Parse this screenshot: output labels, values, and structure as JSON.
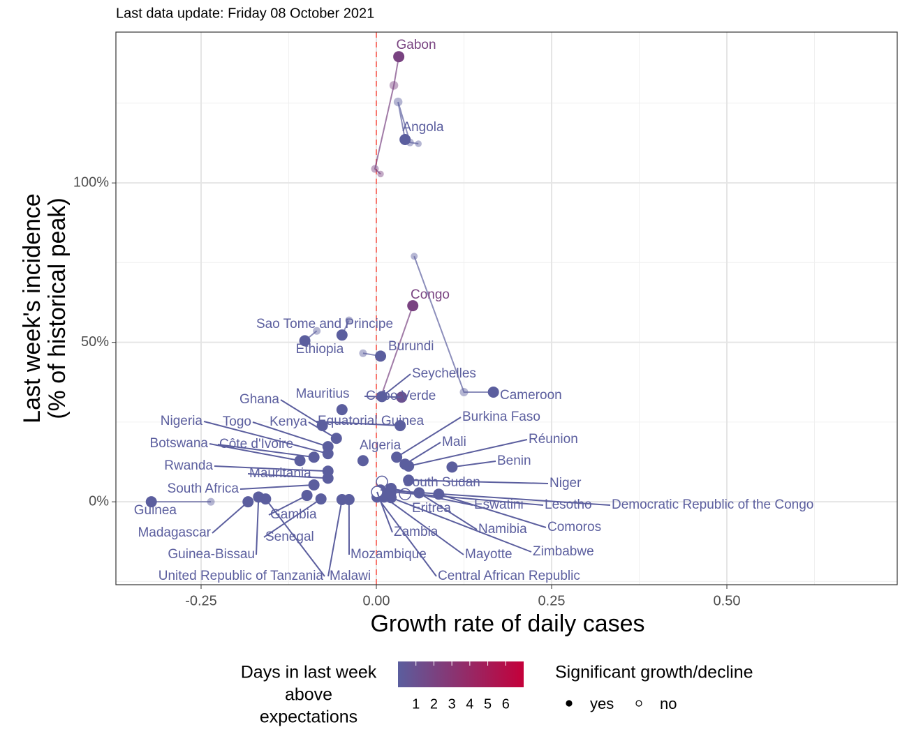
{
  "chart_data": {
    "type": "scatter",
    "subtitle": "Last data update: Friday 08 October 2021",
    "x_label": "Growth rate of daily cases",
    "y_label": [
      "Last week's incidence",
      "(% of historical peak)"
    ],
    "xlim": [
      -0.3715,
      0.743
    ],
    "ylim": [
      -26.0,
      147.3
    ],
    "xticks": [
      -0.25,
      {
        "value": 0,
        "label": "0.00"
      },
      0.25,
      {
        "value": 0.5,
        "label": "0.50"
      }
    ],
    "yticks": [
      {
        "value": 0,
        "label": "0%"
      },
      {
        "value": 50,
        "label": "50%"
      },
      {
        "value": 100,
        "label": "100%"
      }
    ],
    "grid": true,
    "vline": 0,
    "vline_color": "#f8766d",
    "color_low": "#5b5e9e",
    "color_high": "#c4003a",
    "color_limits": [
      0,
      7
    ],
    "color_ticks": [
      1,
      2,
      3,
      4,
      5,
      6
    ],
    "color_legend_title": [
      "Days in last week",
      "above",
      "expectations"
    ],
    "shape_legend": {
      "title": "Significant growth/decline",
      "labels": [
        "yes",
        "no"
      ]
    },
    "countries": [
      {
        "name": "Gabon",
        "x": [
          0.006,
          -0.002,
          0.025,
          0.032
        ],
        "y": [
          102.8,
          104.4,
          130.6,
          139.6
        ],
        "days": 2,
        "significant": true
      },
      {
        "name": "Angola",
        "x": [
          0.06,
          0.048,
          0.031,
          0.041
        ],
        "y": [
          112.3,
          112.7,
          125.4,
          113.6
        ],
        "days": 0,
        "significant": true
      },
      {
        "name": "Congo",
        "x": [
          0.006,
          0.052
        ],
        "y": [
          32.6,
          61.5
        ],
        "days": 2,
        "significant": true
      },
      {
        "name": "Cameroon",
        "x": [
          0.054,
          0.125,
          0.167
        ],
        "y": [
          77.0,
          34.4,
          34.4
        ],
        "days": 0,
        "significant": true
      },
      {
        "name": "Sao Tome and Principe",
        "x": [
          -0.039,
          -0.049
        ],
        "y": [
          56.9,
          52.3
        ],
        "days": 0,
        "significant": true
      },
      {
        "name": "Ethiopia",
        "x": [
          -0.085,
          -0.102
        ],
        "y": [
          53.6,
          50.5
        ],
        "days": 0,
        "significant": true
      },
      {
        "name": "Burundi",
        "x": [
          -0.019,
          0.006
        ],
        "y": [
          46.6,
          45.7
        ],
        "days": 0,
        "significant": true
      },
      {
        "name": "Seychelles",
        "x": [
          0.008
        ],
        "y": [
          33.0
        ],
        "days": 0,
        "significant": true
      },
      {
        "name": "Cabo Verde",
        "x": [
          0.036
        ],
        "y": [
          32.8
        ],
        "days": 1,
        "significant": true
      },
      {
        "name": "Ghana",
        "x": [
          -0.077
        ],
        "y": [
          23.9
        ],
        "days": 0,
        "significant": true
      },
      {
        "name": "Mauritius",
        "x": [
          -0.049
        ],
        "y": [
          28.9
        ],
        "days": 0,
        "significant": true
      },
      {
        "name": "Togo",
        "x": [
          -0.069
        ],
        "y": [
          17.3
        ],
        "days": 0,
        "significant": true
      },
      {
        "name": "Kenya",
        "x": [
          -0.057
        ],
        "y": [
          19.9
        ],
        "days": 0,
        "significant": true
      },
      {
        "name": "Nigeria",
        "x": [
          -0.069
        ],
        "y": [
          15.1
        ],
        "days": 0,
        "significant": true
      },
      {
        "name": "Equatorial Guinea",
        "x": [
          0.034
        ],
        "y": [
          23.9
        ],
        "days": 0,
        "significant": true
      },
      {
        "name": "Burkina Faso",
        "x": [
          0.029
        ],
        "y": [
          14.0
        ],
        "days": 0,
        "significant": true
      },
      {
        "name": "Mali",
        "x": [
          0.041
        ],
        "y": [
          11.8
        ],
        "days": 0,
        "significant": true
      },
      {
        "name": "Réunion",
        "x": [
          0.046
        ],
        "y": [
          11.2
        ],
        "days": 0,
        "significant": true
      },
      {
        "name": "Benin",
        "x": [
          0.108
        ],
        "y": [
          10.9
        ],
        "days": 0,
        "significant": true
      },
      {
        "name": "Botswana",
        "x": [
          -0.109
        ],
        "y": [
          12.9
        ],
        "days": 0,
        "significant": true
      },
      {
        "name": "Côte d'Ivoire",
        "x": [
          -0.089
        ],
        "y": [
          14.0
        ],
        "days": 0,
        "significant": true
      },
      {
        "name": "Algeria",
        "x": [
          -0.019
        ],
        "y": [
          12.9
        ],
        "days": 0,
        "significant": true
      },
      {
        "name": "Rwanda",
        "x": [
          -0.069
        ],
        "y": [
          9.6
        ],
        "days": 0,
        "significant": true
      },
      {
        "name": "Mauritania",
        "x": [
          -0.069
        ],
        "y": [
          7.4
        ],
        "days": 0,
        "significant": true
      },
      {
        "name": "South Africa",
        "x": [
          -0.089
        ],
        "y": [
          5.3
        ],
        "days": 0,
        "significant": true
      },
      {
        "name": "South Sudan",
        "x": [
          0.008
        ],
        "y": [
          6.3
        ],
        "days": 0,
        "significant": false
      },
      {
        "name": "Niger",
        "x": [
          0.046
        ],
        "y": [
          6.8
        ],
        "days": 0,
        "significant": true
      },
      {
        "name": "Eswatini",
        "x": [
          0.021
        ],
        "y": [
          4.2
        ],
        "days": 0,
        "significant": true
      },
      {
        "name": "Lesotho",
        "x": [
          0.021
        ],
        "y": [
          3.1
        ],
        "days": 0,
        "significant": true
      },
      {
        "name": "Democratic Republic of the Congo",
        "x": [
          0.006
        ],
        "y": [
          3.7
        ],
        "days": 0,
        "significant": true
      },
      {
        "name": "Eritrea",
        "x": [
          0.041
        ],
        "y": [
          2.4
        ],
        "days": 0,
        "significant": false
      },
      {
        "name": "Namibia",
        "x": [
          0.061
        ],
        "y": [
          2.8
        ],
        "days": 0,
        "significant": true
      },
      {
        "name": "Comoros",
        "x": [
          0.089
        ],
        "y": [
          2.4
        ],
        "days": 0,
        "significant": true
      },
      {
        "name": "Zimbabwe",
        "x": [
          0.021
        ],
        "y": [
          1.3
        ],
        "days": 0,
        "significant": true
      },
      {
        "name": "Mayotte",
        "x": [
          0.011
        ],
        "y": [
          1.5
        ],
        "days": 0,
        "significant": true
      },
      {
        "name": "Central African Republic",
        "x": [
          0.001
        ],
        "y": [
          1.5
        ],
        "days": 0,
        "significant": true
      },
      {
        "name": "Zambia",
        "x": [
          0.001
        ],
        "y": [
          3.1
        ],
        "days": 0,
        "significant": false
      },
      {
        "name": "Mozambique",
        "x": [
          -0.039
        ],
        "y": [
          0.7
        ],
        "days": 0,
        "significant": true
      },
      {
        "name": "Malawi",
        "x": [
          -0.049
        ],
        "y": [
          0.7
        ],
        "days": 0,
        "significant": true
      },
      {
        "name": "Gambia",
        "x": [
          -0.099
        ],
        "y": [
          2.0
        ],
        "days": 0,
        "significant": true
      },
      {
        "name": "Senegal",
        "x": [
          -0.079
        ],
        "y": [
          0.9
        ],
        "days": 0,
        "significant": true
      },
      {
        "name": "Guinea",
        "x": [
          -0.236,
          -0.321
        ],
        "y": [
          0.0,
          0.0
        ],
        "days": 0,
        "significant": true
      },
      {
        "name": "Madagascar",
        "x": [
          -0.183
        ],
        "y": [
          0.0
        ],
        "days": 0,
        "significant": true
      },
      {
        "name": "Guinea-Bissau",
        "x": [
          -0.168
        ],
        "y": [
          1.5
        ],
        "days": 0,
        "significant": true
      },
      {
        "name": "United Republic of Tanzania",
        "x": [
          -0.158
        ],
        "y": [
          0.9
        ],
        "days": 0,
        "significant": true
      }
    ]
  }
}
